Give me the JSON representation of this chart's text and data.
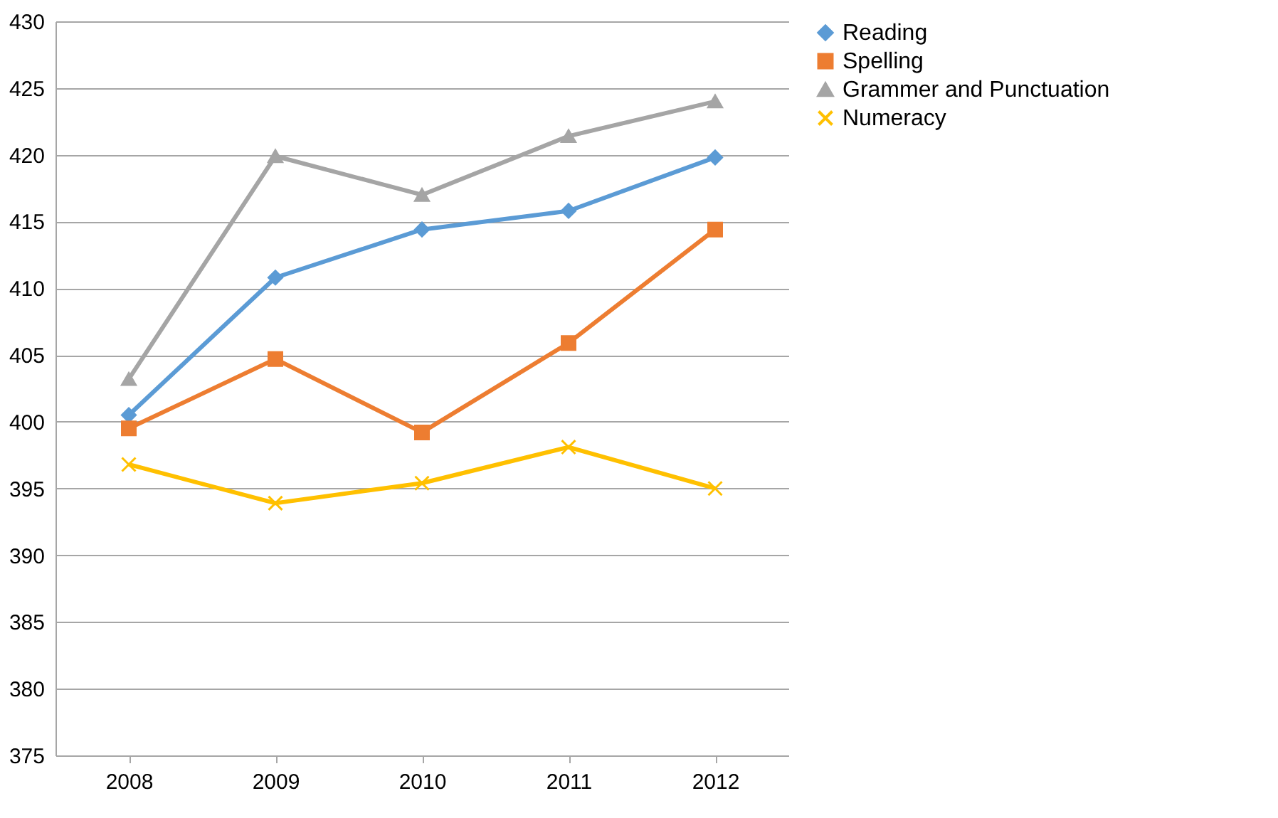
{
  "chart_data": {
    "type": "line",
    "categories": [
      "2008",
      "2009",
      "2010",
      "2011",
      "2012"
    ],
    "series": [
      {
        "name": "Reading",
        "color": "#5b9bd5",
        "marker": "diamond",
        "values": [
          400.5,
          410.8,
          414.4,
          415.8,
          419.8
        ]
      },
      {
        "name": "Spelling",
        "color": "#ed7d31",
        "marker": "square",
        "values": [
          399.5,
          404.7,
          399.2,
          405.9,
          414.4
        ]
      },
      {
        "name": "Grammer and Punctuation",
        "color": "#a5a5a5",
        "marker": "triangle",
        "values": [
          403.2,
          419.9,
          417.0,
          421.4,
          424.0
        ]
      },
      {
        "name": "Numeracy",
        "color": "#ffc000",
        "marker": "cross",
        "values": [
          396.8,
          393.9,
          395.4,
          398.1,
          395.0
        ]
      }
    ],
    "ylim": [
      375,
      430
    ],
    "yticks": [
      375,
      380,
      385,
      390,
      395,
      400,
      405,
      410,
      415,
      420,
      425,
      430
    ],
    "grid": "y",
    "legend": "right",
    "line_style": "solid"
  }
}
